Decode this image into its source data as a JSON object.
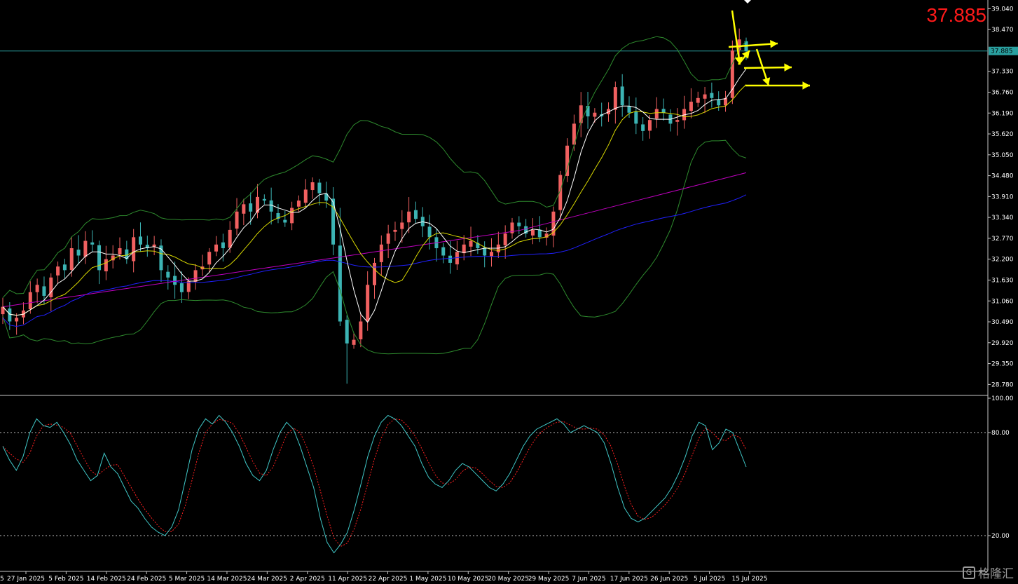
{
  "chart_data": {
    "type": "candlestick",
    "price_panel": {
      "ylim": [
        28.5,
        39.2
      ],
      "y_ticks": [
        "39.040",
        "38.470",
        "37.885",
        "37.330",
        "36.760",
        "36.190",
        "35.620",
        "35.050",
        "34.480",
        "33.910",
        "33.340",
        "32.770",
        "32.200",
        "31.630",
        "31.060",
        "30.490",
        "29.920",
        "29.350",
        "28.780"
      ],
      "current_price": "37.885",
      "current_price_label": "37.885",
      "x_labels": [
        "27 Jan 2025",
        "5 Feb 2025",
        "14 Feb 2025",
        "24 Feb 2025",
        "5 Mar 2025",
        "14 Mar 2025",
        "24 Mar 2025",
        "2 Apr 2025",
        "11 Apr 2025",
        "22 Apr 2025",
        "1 May 2025",
        "10 May 2025",
        "20 May 2025",
        "29 May 2025",
        "7 Jun 2025",
        "17 Jun 2025",
        "26 Jun 2025",
        "5 Jul 2025",
        "15 Jul 2025"
      ],
      "x_label_edge": "5",
      "closes": [
        30.9,
        30.5,
        30.6,
        30.8,
        31.3,
        31.5,
        31.2,
        31.7,
        32.0,
        31.9,
        32.5,
        32.3,
        32.7,
        32.6,
        31.9,
        32.2,
        32.3,
        32.5,
        32.2,
        32.8,
        32.6,
        32.5,
        32.6,
        31.9,
        31.7,
        31.5,
        31.3,
        31.6,
        31.9,
        32.0,
        32.4,
        32.6,
        32.5,
        33.0,
        33.5,
        33.7,
        33.5,
        33.9,
        33.8,
        33.5,
        33.3,
        33.2,
        33.6,
        33.8,
        34.1,
        34.3,
        34.0,
        33.8,
        32.6,
        30.5,
        29.9,
        30.0,
        30.5,
        31.5,
        32.1,
        32.6,
        32.9,
        33.0,
        33.2,
        33.5,
        33.3,
        33.1,
        32.8,
        32.5,
        32.3,
        32.1,
        32.4,
        32.6,
        32.7,
        32.5,
        32.3,
        32.4,
        32.6,
        32.9,
        33.2,
        33.1,
        32.9,
        33.0,
        32.8,
        32.9,
        33.5,
        34.5,
        35.3,
        35.9,
        36.4,
        36.1,
        36.2,
        36.1,
        36.3,
        36.9,
        36.4,
        36.2,
        35.9,
        35.7,
        36.0,
        36.3,
        36.2,
        35.9,
        36.0,
        36.3,
        36.5,
        36.6,
        36.7,
        36.6,
        36.4,
        36.6,
        37.9,
        38.2,
        37.885
      ]
    },
    "oscillator_panel": {
      "type": "stochastic",
      "ylim": [
        0,
        100
      ],
      "y_ticks": [
        "100.00",
        "80.00",
        "20.00"
      ],
      "levels": [
        80,
        20
      ],
      "main": [
        72,
        64,
        58,
        66,
        80,
        88,
        84,
        83,
        86,
        80,
        73,
        64,
        58,
        52,
        55,
        68,
        60,
        56,
        48,
        40,
        36,
        30,
        25,
        22,
        20,
        25,
        35,
        52,
        70,
        82,
        88,
        85,
        90,
        86,
        80,
        72,
        62,
        55,
        52,
        58,
        70,
        80,
        86,
        82,
        72,
        60,
        48,
        30,
        16,
        10,
        15,
        22,
        35,
        50,
        66,
        78,
        86,
        90,
        88,
        84,
        78,
        72,
        62,
        54,
        50,
        48,
        52,
        58,
        62,
        60,
        56,
        52,
        48,
        46,
        50,
        56,
        64,
        72,
        78,
        82,
        84,
        86,
        88,
        85,
        80,
        82,
        84,
        82,
        80,
        74,
        62,
        48,
        36,
        30,
        28,
        30,
        34,
        38,
        42,
        48,
        56,
        66,
        78,
        86,
        84,
        70,
        74,
        82,
        80,
        70,
        60
      ]
    },
    "annotations": [
      "yellow arrows projecting price path to the right"
    ]
  },
  "colors": {
    "background": "#000000",
    "bull_candle": "#f06060",
    "bear_candle": "#3cb4b4",
    "bollinger": "#2e8b2e",
    "ma_fast": "#ffffff",
    "ma_mid": "#d9d900",
    "ma_slow": "#2020ff",
    "ma_long": "#c000c0",
    "stoch_main": "#40c8c8",
    "stoch_signal": "#ff2020",
    "arrow": "#ffff00",
    "price_line": "#2aa0a0"
  },
  "watermark": {
    "logo_glyph": "G",
    "text": "格隆汇"
  }
}
